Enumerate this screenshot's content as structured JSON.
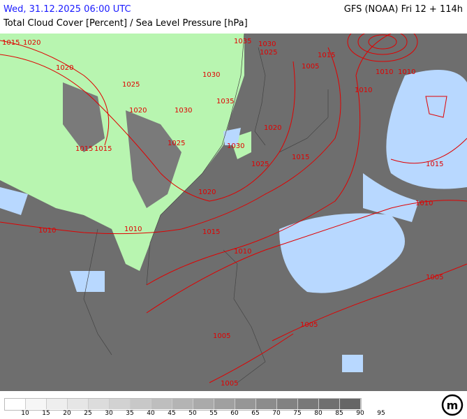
{
  "header": {
    "valid_time": "Wed, 31.12.2025 06:00 UTC",
    "model_run": "GFS (NOAA) Fri 12 + 114h",
    "parameter": "Total Cloud Cover [Percent] / Sea Level Pressure [hPa]"
  },
  "colors": {
    "date_text": "#1a1aff",
    "isobar": "#e00000",
    "land_clear": "#b8f5b0",
    "sea_clear": "#b8d8ff",
    "cloud_dense": "#666666"
  },
  "legend": {
    "colors": [
      "#ffffff",
      "#f6f6f6",
      "#eeeeee",
      "#e6e6e6",
      "#dcdcdc",
      "#d2d2d2",
      "#c8c8c8",
      "#bebebe",
      "#b4b4b4",
      "#aaaaaa",
      "#a0a0a0",
      "#969696",
      "#8c8c8c",
      "#828282",
      "#787878",
      "#707070",
      "#666666"
    ],
    "labels": [
      "10",
      "15",
      "20",
      "25",
      "30",
      "35",
      "40",
      "45",
      "50",
      "55",
      "60",
      "65",
      "70",
      "75",
      "80",
      "85",
      "90",
      "95"
    ]
  },
  "isobar_labels": [
    "1015",
    "1020",
    "1015",
    "1010",
    "1020",
    "1025",
    "1030",
    "1035",
    "1025",
    "1030",
    "1035",
    "1030",
    "1025",
    "1015",
    "1005",
    "1010",
    "1010",
    "1015",
    "1015",
    "1020",
    "1020",
    "1025",
    "1015",
    "1030",
    "1020",
    "1010",
    "1015",
    "1010",
    "1010",
    "1010",
    "1005",
    "1005",
    "1005",
    "1005"
  ],
  "logo": "m"
}
